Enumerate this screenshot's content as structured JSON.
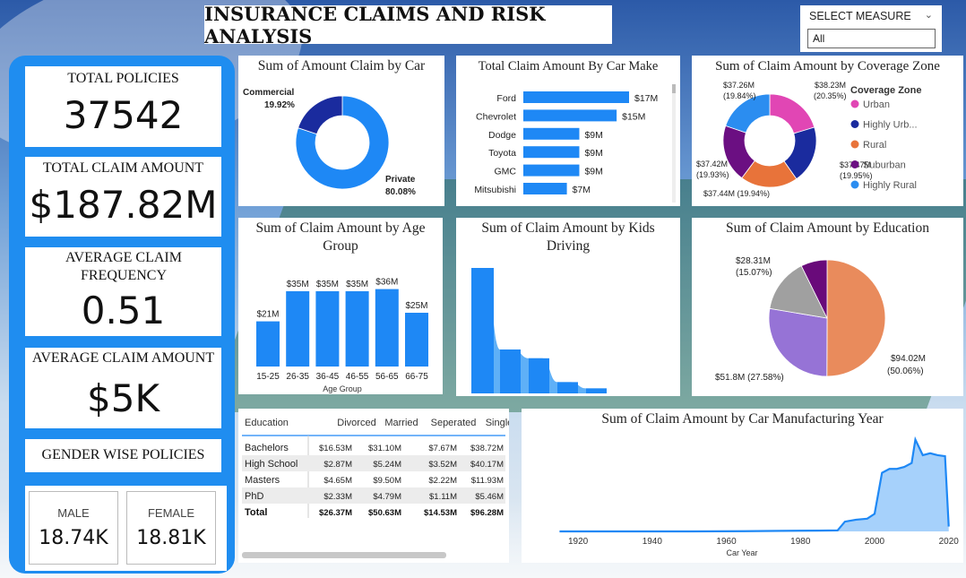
{
  "header": {
    "title": "INSURANCE CLAIMS AND RISK ANALYSIS"
  },
  "slicer": {
    "label": "SELECT MEASURE",
    "selected": "All"
  },
  "kpis": {
    "total_policies_label": "TOTAL POLICIES",
    "total_policies_value": "37542",
    "total_claim_label": "TOTAL CLAIM AMOUNT",
    "total_claim_value": "$187.82M",
    "avg_freq_label": "AVERAGE CLAIM FREQUENCY",
    "avg_freq_value": "0.51",
    "avg_amount_label": "AVERAGE CLAIM AMOUNT",
    "avg_amount_value": "$5K",
    "gender_label": "GENDER WISE POLICIES",
    "male_label": "MALE",
    "male_value": "18.74K",
    "female_label": "FEMALE",
    "female_value": "18.81K"
  },
  "colors": {
    "primary_blue": "#1e88f5",
    "dark_blue": "#1a2b9e",
    "urban": "#e146b4",
    "highly_urban": "#1a2b9e",
    "rural": "#e8733a",
    "suburban": "#6b0f82",
    "highly_rural": "#2b8df0",
    "edu_orange": "#e98b5c",
    "edu_purple": "#9673d6",
    "edu_gray": "#a0a0a0",
    "edu_dark": "#690a7a"
  },
  "charts": {
    "car_use": {
      "title": "Sum of Amount Claim by Car",
      "labels": [
        "Commercial",
        "Private"
      ],
      "pct_labels": [
        "19.92%",
        "80.08%"
      ]
    },
    "car_make": {
      "title": "Total Claim Amount By Car Make"
    },
    "coverage": {
      "title": "Sum of Claim Amount by Coverage Zone",
      "legend_title": "Coverage Zone",
      "legend": [
        "Urban",
        "Highly Urb...",
        "Rural",
        "Suburban",
        "Highly Rural"
      ],
      "labels": [
        [
          "$38.23M",
          "(20.35%)"
        ],
        [
          "$37.47M",
          "(19.95%)"
        ],
        [
          "$37.44M (19.94%)"
        ],
        [
          "$37.42M",
          "(19.93%)"
        ],
        [
          "$37.26M",
          "(19.84%)"
        ]
      ]
    },
    "age": {
      "title": "Sum of Claim Amount by Age Group",
      "xlabel": "Age Group"
    },
    "kids": {
      "title": "Sum of Claim Amount by Kids Driving"
    },
    "education": {
      "title": "Sum of Claim Amount by Education",
      "labels": [
        [
          "$94.02M",
          "(50.06%)"
        ],
        [
          "$51.8M (27.58%)"
        ],
        [
          "$28.31M",
          "(15.07%)"
        ]
      ]
    },
    "year": {
      "title": "Sum of Claim Amount by Car Manufacturing Year",
      "xlabel": "Car Year"
    }
  },
  "matrix": {
    "headers": [
      "Education",
      "Divorced",
      "Married",
      "Seperated",
      "Single"
    ],
    "rows": [
      [
        "Bachelors",
        "$16.53M",
        "$31.10M",
        "$7.67M",
        "$38.72M"
      ],
      [
        "High School",
        "$2.87M",
        "$5.24M",
        "$3.52M",
        "$40.17M"
      ],
      [
        "Masters",
        "$4.65M",
        "$9.50M",
        "$2.22M",
        "$11.93M"
      ],
      [
        "PhD",
        "$2.33M",
        "$4.79M",
        "$1.11M",
        "$5.46M"
      ]
    ],
    "total": [
      "Total",
      "$26.37M",
      "$50.63M",
      "$14.53M",
      "$96.28M"
    ]
  },
  "chart_data": [
    {
      "type": "pie",
      "title": "Sum of Amount Claim by Car",
      "categories": [
        "Commercial",
        "Private"
      ],
      "values": [
        19.92,
        80.08
      ]
    },
    {
      "type": "bar",
      "title": "Total Claim Amount By Car Make",
      "categories": [
        "Ford",
        "Chevrolet",
        "Dodge",
        "Toyota",
        "GMC",
        "Mitsubishi"
      ],
      "values": [
        17,
        15,
        9,
        9,
        9,
        7
      ],
      "labels": [
        "$17M",
        "$15M",
        "$9M",
        "$9M",
        "$9M",
        "$7M"
      ]
    },
    {
      "type": "pie",
      "title": "Sum of Claim Amount by Coverage Zone",
      "categories": [
        "Urban",
        "Highly Urban",
        "Rural",
        "Suburban",
        "Highly Rural"
      ],
      "values": [
        38.23,
        37.47,
        37.44,
        37.42,
        37.26
      ]
    },
    {
      "type": "bar",
      "title": "Sum of Claim Amount by Age Group",
      "categories": [
        "15-25",
        "26-35",
        "36-45",
        "46-55",
        "56-65",
        "66-75"
      ],
      "values": [
        21,
        35,
        35,
        35,
        36,
        25
      ],
      "labels": [
        "$21M",
        "$35M",
        "$35M",
        "$35M",
        "$36M",
        "$25M"
      ],
      "xlabel": "Age Group"
    },
    {
      "type": "area",
      "title": "Sum of Claim Amount by Kids Driving",
      "values": [
        100,
        35,
        28,
        9,
        4
      ]
    },
    {
      "type": "pie",
      "title": "Sum of Claim Amount by Education",
      "categories": [
        "Bachelors",
        "High School",
        "Masters",
        "PhD"
      ],
      "values": [
        94.02,
        51.8,
        28.31,
        13.69
      ]
    },
    {
      "type": "area",
      "title": "Sum of Claim Amount by Car Manufacturing Year",
      "xlabel": "Car Year",
      "xticks": [
        1920,
        1940,
        1960,
        1980,
        2000,
        2020
      ],
      "x": [
        1915,
        1930,
        1950,
        1965,
        1975,
        1985,
        1990,
        1992,
        1995,
        1998,
        2000,
        2002,
        2004,
        2006,
        2008,
        2010,
        2011,
        2012,
        2013,
        2015,
        2017,
        2019,
        2020
      ],
      "y": [
        0,
        0,
        0,
        0.2,
        0.6,
        0.8,
        1,
        10,
        12,
        13,
        18,
        60,
        64,
        64,
        66,
        70,
        94,
        86,
        78,
        80,
        78,
        77,
        5
      ]
    }
  ]
}
